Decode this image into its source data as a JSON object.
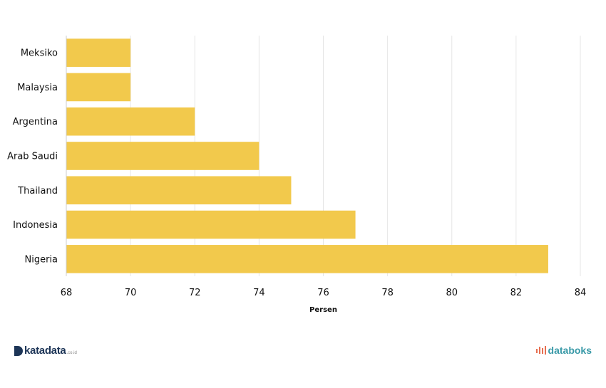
{
  "chart_data": {
    "type": "bar",
    "orientation": "horizontal",
    "categories": [
      "Meksiko",
      "Malaysia",
      "Argentina",
      "Arab Saudi",
      "Thailand",
      "Indonesia",
      "Nigeria"
    ],
    "values": [
      70,
      70,
      72,
      74,
      75,
      77,
      83
    ],
    "xlabel": "Persen",
    "xlim": [
      68,
      84
    ],
    "xticks": [
      "68",
      "70",
      "72",
      "74",
      "76",
      "78",
      "80",
      "82",
      "84"
    ],
    "grid": true,
    "bar_color": "#f2c94c"
  },
  "footer": {
    "left_brand": "katadata",
    "left_brand_suffix": ".co.id",
    "right_brand": "databoks"
  },
  "colors": {
    "grid": "#e6e6e6",
    "axis": "#cccccc",
    "katadata": "#1d3557",
    "databoks": "#3a9aa8",
    "databoks_icon": "#e76f51"
  }
}
